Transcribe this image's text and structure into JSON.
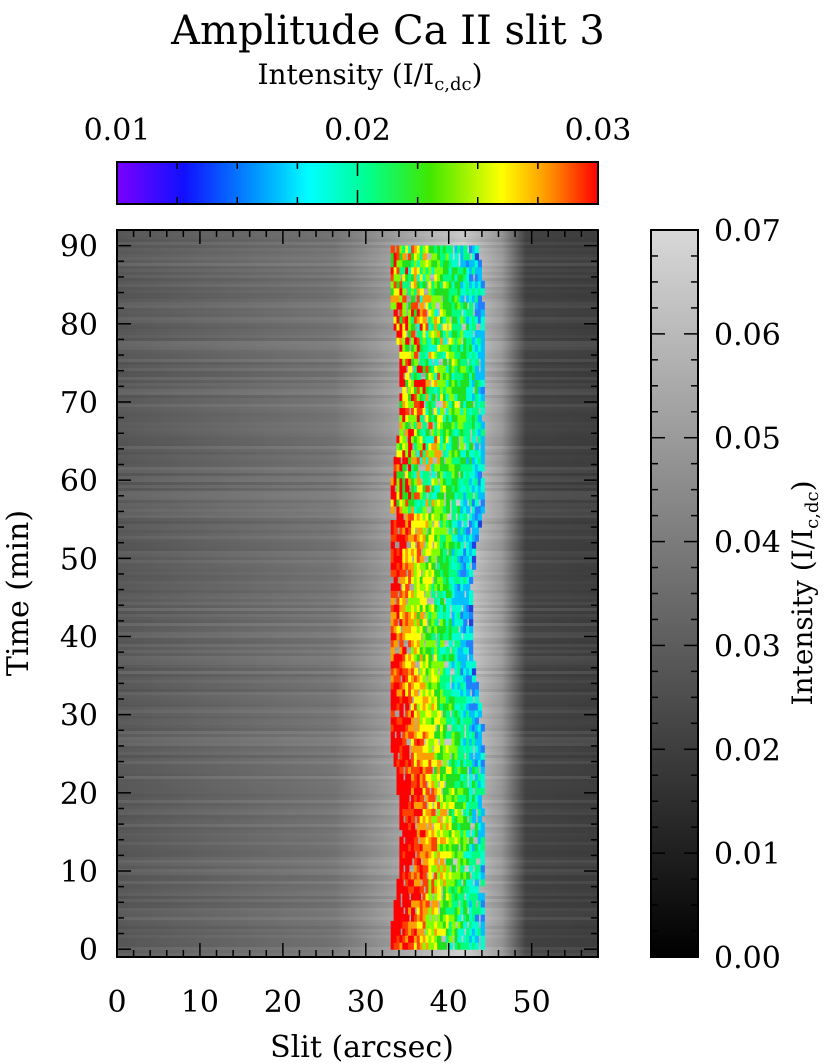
{
  "chart_data": {
    "type": "heatmap",
    "title": "Amplitude Ca II slit 3",
    "xlabel": "Slit   (arcsec)",
    "ylabel": "Time   (min)",
    "xlim": [
      0,
      58
    ],
    "ylim": [
      -1,
      92
    ],
    "xticks": [
      "0",
      "10",
      "20",
      "30",
      "40",
      "50"
    ],
    "yticks": [
      "0",
      "10",
      "20",
      "30",
      "40",
      "50",
      "60",
      "70",
      "80",
      "90"
    ],
    "x_tick_values": [
      0,
      10,
      20,
      30,
      40,
      50
    ],
    "y_tick_values": [
      0,
      10,
      20,
      30,
      40,
      50,
      60,
      70,
      80,
      90
    ],
    "grayscale_colorbar": {
      "label_main": "Intensity   (I/I",
      "label_sub": "c,dc",
      "label_close": ")",
      "range": [
        0.0,
        0.07
      ],
      "ticks": [
        "0.00",
        "0.01",
        "0.02",
        "0.03",
        "0.04",
        "0.05",
        "0.06",
        "0.07"
      ],
      "tick_values": [
        0.0,
        0.01,
        0.02,
        0.03,
        0.04,
        0.05,
        0.06,
        0.07
      ],
      "colormap": "grayscale"
    },
    "color_colorbar": {
      "label_main": "Intensity   (I/I",
      "label_sub": "c,dc",
      "label_close": ")",
      "range": [
        0.01,
        0.03
      ],
      "ticks": [
        "0.01",
        "0.02",
        "0.03"
      ],
      "tick_values": [
        0.01,
        0.02,
        0.03
      ],
      "colormap": "rainbow"
    },
    "overlay_region_x": [
      33,
      44
    ],
    "bright_band_x": [
      26,
      36
    ]
  }
}
